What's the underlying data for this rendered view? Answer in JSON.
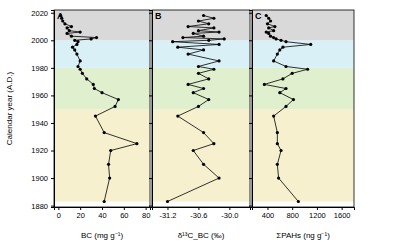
{
  "chart_data": [
    {
      "type": "line",
      "title": "A",
      "xlabel": "BC (mg g⁻¹)",
      "ylabel": "Calendar year (A.D.)",
      "color": "#000000",
      "marker": "circle",
      "tick_labels": true,
      "xlim": [
        -4,
        84
      ],
      "xticks": [
        0,
        20,
        40,
        60,
        80
      ],
      "ylim": [
        1879,
        2022
      ],
      "yticks": [
        1880,
        1900,
        1920,
        1940,
        1960,
        1980,
        2000,
        2020
      ],
      "bands": [
        {
          "from": 1883,
          "to": 1950,
          "color": "#f6f0cf"
        },
        {
          "from": 1950,
          "to": 1980,
          "color": "#e0efcd"
        },
        {
          "from": 1980,
          "to": 2000,
          "color": "#d9f1f6"
        },
        {
          "from": 2000,
          "to": 2022,
          "color": "#d9d9d9"
        }
      ],
      "y": [
        1883,
        1900,
        1910,
        1920,
        1925,
        1933,
        1945,
        1952,
        1957,
        1962,
        1965,
        1968,
        1972,
        1976,
        1979,
        1981,
        1985,
        1990,
        1993,
        1995,
        1997,
        1999,
        2000,
        2001,
        2002,
        2003,
        2005,
        2006,
        2007,
        2009,
        2010,
        2012,
        2014,
        2016,
        2018
      ],
      "x": [
        42,
        47,
        46,
        48,
        72,
        42,
        34,
        52,
        55,
        40,
        33,
        32,
        26,
        22,
        20,
        18,
        20,
        17,
        15,
        13,
        17,
        18,
        15,
        30,
        35,
        12,
        8,
        20,
        10,
        8,
        12,
        6,
        4,
        3,
        2
      ]
    },
    {
      "type": "line",
      "title": "B",
      "xlabel": "δ¹³C_BC (‰)",
      "color": "#000000",
      "marker": "circle",
      "tick_labels": "x",
      "xlim": [
        -31.5,
        -29.6
      ],
      "xticks": [
        -31.2,
        -30.6,
        {
          "value": -30.0,
          "label": "-30.0"
        }
      ],
      "ylim": [
        1879,
        2022
      ],
      "yticks": [
        1880,
        1900,
        1920,
        1940,
        1960,
        1980,
        2000,
        2020
      ],
      "y": [
        1883,
        1900,
        1910,
        1920,
        1925,
        1933,
        1945,
        1952,
        1957,
        1962,
        1965,
        1968,
        1972,
        1976,
        1979,
        1981,
        1985,
        1990,
        1993,
        1995,
        1997,
        1999,
        2000,
        2001,
        2002,
        2003,
        2005,
        2006,
        2007,
        2009,
        2010,
        2012,
        2014,
        2016,
        2018
      ],
      "x": [
        -31.2,
        -30.2,
        -30.5,
        -30.7,
        -30.3,
        -30.5,
        -31.0,
        -30.6,
        -30.4,
        -30.7,
        -30.5,
        -30.8,
        -30.4,
        -30.6,
        -30.3,
        -30.6,
        -30.2,
        -30.8,
        -30.5,
        -31.0,
        -30.2,
        -31.1,
        -30.4,
        -30.1,
        -30.9,
        -30.5,
        -30.7,
        -30.2,
        -30.6,
        -30.3,
        -30.8,
        -30.4,
        -30.6,
        -30.3,
        -30.5
      ]
    },
    {
      "type": "line",
      "title": "C",
      "xlabel": "ΣPAHs (ng g⁻¹)",
      "color": "#000000",
      "marker": "circle",
      "tick_labels": "x",
      "xlim": [
        150,
        1800
      ],
      "xticks": [
        400,
        800,
        1200,
        1600
      ],
      "ylim": [
        1879,
        2022
      ],
      "yticks": [
        1880,
        1900,
        1920,
        1940,
        1960,
        1980,
        2000,
        2020
      ],
      "y": [
        1883,
        1900,
        1910,
        1920,
        1925,
        1933,
        1945,
        1952,
        1957,
        1962,
        1965,
        1968,
        1972,
        1976,
        1979,
        1981,
        1985,
        1990,
        1993,
        1995,
        1997,
        1999,
        2000,
        2001,
        2002,
        2003,
        2005,
        2006,
        2007,
        2009,
        2010,
        2012,
        2014,
        2016,
        2018
      ],
      "x": [
        900,
        580,
        560,
        620,
        560,
        560,
        500,
        700,
        820,
        600,
        700,
        350,
        650,
        800,
        1050,
        700,
        500,
        560,
        600,
        650,
        1100,
        700,
        620,
        540,
        500,
        450,
        420,
        380,
        500,
        420,
        520,
        400,
        450,
        420,
        380
      ]
    }
  ]
}
